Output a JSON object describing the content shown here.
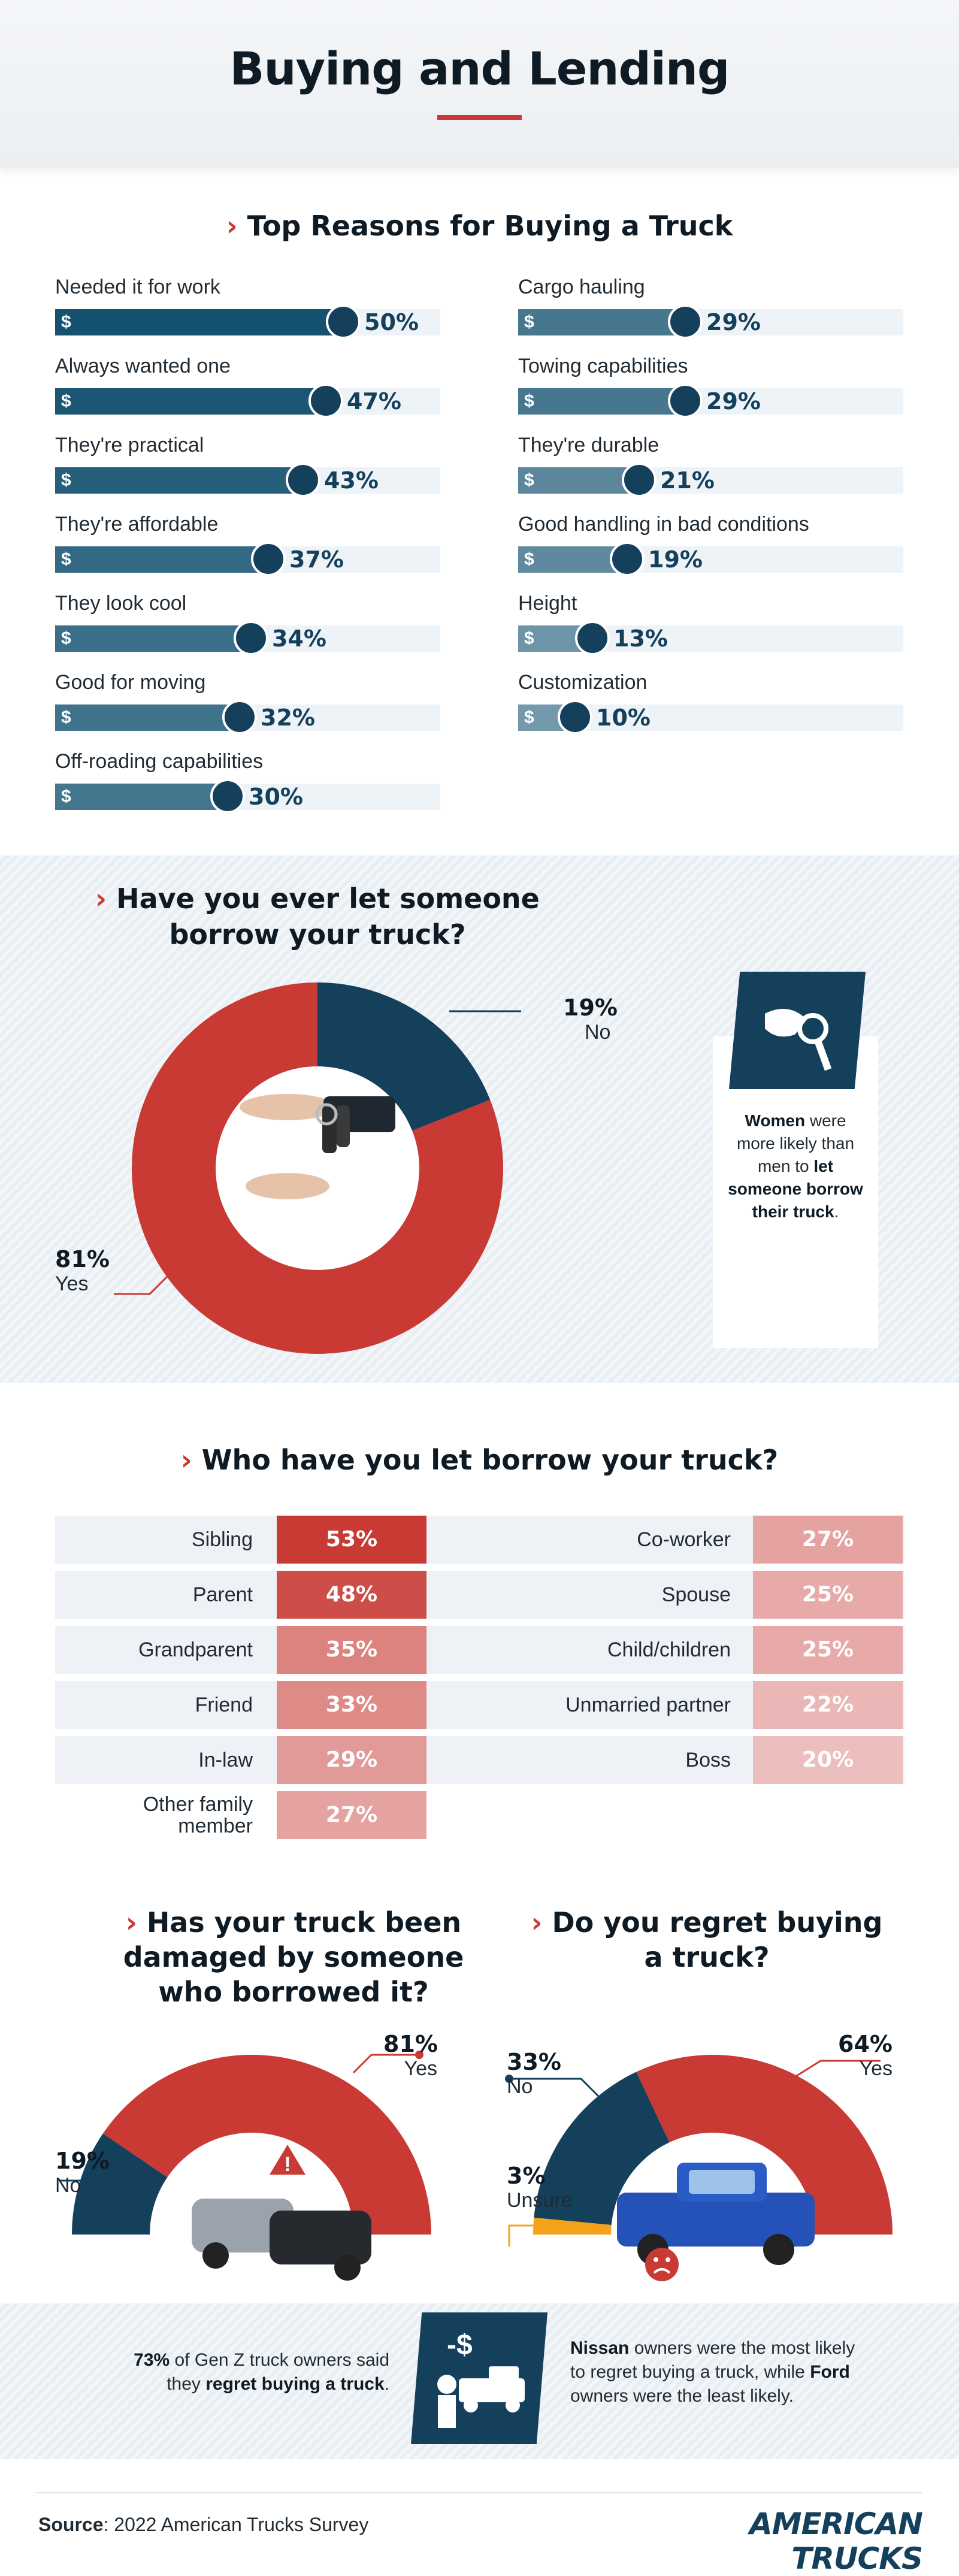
{
  "header": {
    "title": "Buying and Lending"
  },
  "reasons_section": {
    "title": "Top Reasons for Buying a Truck",
    "currency_symbol": "$"
  },
  "borrow_section": {
    "title_line1": "Have you ever let someone",
    "title_line2": "borrow your truck?",
    "callout": {
      "w1": "Women",
      "w2": " were more likely than men to ",
      "w3": "let someone borrow their truck",
      "w4": "."
    }
  },
  "who_section": {
    "title": "Who have you let borrow your truck?"
  },
  "damaged_section": {
    "title_line1": "Has your truck been",
    "title_line2": "damaged by someone",
    "title_line3": "who borrowed it?"
  },
  "regret_section": {
    "title_line1": "Do you regret buying",
    "title_line2": "a truck?"
  },
  "notes": {
    "left_a": "73%",
    "left_b": " of Gen Z truck owners said they ",
    "left_c": "regret buying a truck",
    "left_d": ".",
    "right_a": "Nissan",
    "right_b": " owners were the most likely to regret buying a truck, while ",
    "right_c": "Ford",
    "right_d": " owners were the least likely."
  },
  "footer": {
    "source_label": "Source",
    "source_text": ": 2022 American Trucks Survey",
    "logo": "AMERICAN TRUCKS"
  },
  "colors": {
    "accent": "#c83a33",
    "navy": "#14405c",
    "orange": "#f5a21b"
  },
  "chart_data": [
    {
      "type": "bar",
      "title": "Top Reasons for Buying a Truck",
      "categories": [
        "Needed it for work",
        "Always wanted one",
        "They're practical",
        "They're affordable",
        "They look cool",
        "Good for moving",
        "Off-roading capabilities",
        "Cargo hauling",
        "Towing capabilities",
        "They're durable",
        "Good handling in bad conditions",
        "Height",
        "Customization"
      ],
      "values": [
        50,
        47,
        43,
        37,
        34,
        32,
        30,
        29,
        29,
        21,
        19,
        13,
        10
      ],
      "value_labels": [
        "50%",
        "47%",
        "43%",
        "37%",
        "34%",
        "32%",
        "30%",
        "29%",
        "29%",
        "21%",
        "19%",
        "13%",
        "10%"
      ],
      "unit": "%"
    },
    {
      "type": "pie",
      "title": "Have you ever let someone borrow your truck?",
      "categories": [
        "Yes",
        "No"
      ],
      "values": [
        81,
        19
      ],
      "value_labels": [
        "81%",
        "19%"
      ]
    },
    {
      "type": "table",
      "title": "Who have you let borrow your truck?",
      "categories": [
        "Sibling",
        "Parent",
        "Grandparent",
        "Friend",
        "In-law",
        "Other family member",
        "Co-worker",
        "Spouse",
        "Child/children",
        "Unmarried partner",
        "Boss"
      ],
      "values": [
        53,
        48,
        35,
        33,
        29,
        27,
        27,
        25,
        25,
        22,
        20
      ],
      "value_labels": [
        "53%",
        "48%",
        "35%",
        "33%",
        "29%",
        "27%",
        "27%",
        "25%",
        "25%",
        "22%",
        "20%"
      ],
      "name_lines": {
        "Other family member": [
          "Other family",
          "member"
        ]
      }
    },
    {
      "type": "pie",
      "title": "Has your truck been damaged by someone who borrowed it?",
      "categories": [
        "Yes",
        "No"
      ],
      "values": [
        81,
        19
      ],
      "value_labels": [
        "81%",
        "19%"
      ]
    },
    {
      "type": "pie",
      "title": "Do you regret buying a truck?",
      "categories": [
        "Yes",
        "No",
        "Unsure"
      ],
      "values": [
        64,
        33,
        3
      ],
      "value_labels": [
        "64%",
        "33%",
        "3%"
      ]
    }
  ]
}
